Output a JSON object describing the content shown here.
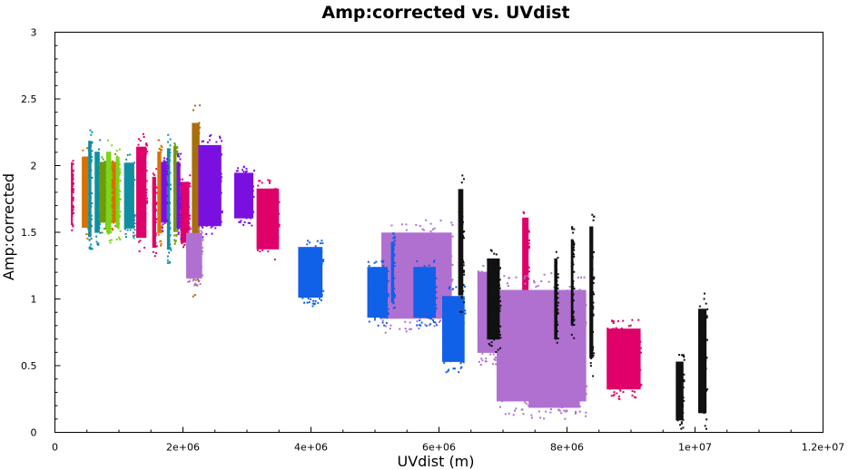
{
  "chart_data": {
    "type": "scatter",
    "title": "Amp:corrected vs. UVdist",
    "xlabel": "UVdist (m)",
    "ylabel": "Amp:corrected",
    "xlim": [
      0,
      12000000
    ],
    "ylim": [
      0,
      3
    ],
    "x_ticks": [
      {
        "value": 0,
        "label": "0"
      },
      {
        "value": 2000000,
        "label": "2e+06"
      },
      {
        "value": 4000000,
        "label": "4e+06"
      },
      {
        "value": 6000000,
        "label": "6e+06"
      },
      {
        "value": 8000000,
        "label": "8e+06"
      },
      {
        "value": 10000000,
        "label": "1e+07"
      },
      {
        "value": 12000000,
        "label": "1.2e+07"
      }
    ],
    "y_ticks": [
      {
        "value": 0,
        "label": "0"
      },
      {
        "value": 0.5,
        "label": "0.5"
      },
      {
        "value": 1,
        "label": "1"
      },
      {
        "value": 1.5,
        "label": "1.5"
      },
      {
        "value": 2,
        "label": "2"
      },
      {
        "value": 2.5,
        "label": "2.5"
      },
      {
        "value": 3,
        "label": "3"
      }
    ],
    "grid": false,
    "legend": "none",
    "series": [
      {
        "color": "#e0006a",
        "clusters": [
          {
            "x0": 250000,
            "x1": 270000,
            "ylo": 1.48,
            "yhi": 2.1
          },
          {
            "x0": 1270000,
            "x1": 1430000,
            "ylo": 1.35,
            "yhi": 2.25
          },
          {
            "x0": 1520000,
            "x1": 1580000,
            "ylo": 1.3,
            "yhi": 2.0
          },
          {
            "x0": 1960000,
            "x1": 2100000,
            "ylo": 1.35,
            "yhi": 1.95
          },
          {
            "x0": 3150000,
            "x1": 3500000,
            "ylo": 1.3,
            "yhi": 1.9
          },
          {
            "x0": 7300000,
            "x1": 7400000,
            "ylo": 0.95,
            "yhi": 1.7
          },
          {
            "x0": 7050000,
            "x1": 7100000,
            "ylo": 0.5,
            "yhi": 0.95
          },
          {
            "x0": 8620000,
            "x1": 9150000,
            "ylo": 0.25,
            "yhi": 0.85
          }
        ]
      },
      {
        "color": "#d97000",
        "clusters": [
          {
            "x0": 420000,
            "x1": 520000,
            "ylo": 1.45,
            "yhi": 2.15
          },
          {
            "x0": 880000,
            "x1": 960000,
            "ylo": 1.5,
            "yhi": 2.1
          },
          {
            "x0": 1600000,
            "x1": 1660000,
            "ylo": 1.4,
            "yhi": 2.2
          }
        ]
      },
      {
        "color": "#0f8fa0",
        "clusters": [
          {
            "x0": 520000,
            "x1": 570000,
            "ylo": 1.35,
            "yhi": 2.3
          },
          {
            "x0": 620000,
            "x1": 700000,
            "ylo": 1.4,
            "yhi": 2.2
          },
          {
            "x0": 1080000,
            "x1": 1240000,
            "ylo": 1.45,
            "yhi": 2.1
          },
          {
            "x0": 1750000,
            "x1": 1800000,
            "ylo": 1.25,
            "yhi": 2.25
          }
        ]
      },
      {
        "color": "#6e9a0c",
        "clusters": [
          {
            "x0": 700000,
            "x1": 800000,
            "ylo": 1.5,
            "yhi": 2.1
          },
          {
            "x0": 1850000,
            "x1": 1900000,
            "ylo": 1.4,
            "yhi": 2.25
          }
        ]
      },
      {
        "color": "#7ad61a",
        "clusters": [
          {
            "x0": 800000,
            "x1": 880000,
            "ylo": 1.4,
            "yhi": 2.2
          },
          {
            "x0": 950000,
            "x1": 1010000,
            "ylo": 1.45,
            "yhi": 2.15
          }
        ]
      },
      {
        "color": "#a86e0c",
        "clusters": [
          {
            "x0": 2140000,
            "x1": 2260000,
            "ylo": 1.0,
            "yhi": 2.5
          }
        ]
      },
      {
        "color": "#7a10e0",
        "clusters": [
          {
            "x0": 1660000,
            "x1": 1750000,
            "ylo": 1.5,
            "yhi": 2.1
          },
          {
            "x0": 1900000,
            "x1": 1960000,
            "ylo": 1.45,
            "yhi": 2.1
          },
          {
            "x0": 2240000,
            "x1": 2600000,
            "ylo": 1.45,
            "yhi": 2.25
          },
          {
            "x0": 2800000,
            "x1": 3100000,
            "ylo": 1.55,
            "yhi": 2.0
          }
        ]
      },
      {
        "color": "#b070d0",
        "clusters": [
          {
            "x0": 2050000,
            "x1": 2300000,
            "ylo": 1.1,
            "yhi": 1.55
          },
          {
            "x0": 5100000,
            "x1": 6200000,
            "ylo": 0.75,
            "yhi": 1.6
          },
          {
            "x0": 6600000,
            "x1": 6900000,
            "ylo": 0.5,
            "yhi": 1.3
          },
          {
            "x0": 6900000,
            "x1": 8300000,
            "ylo": 0.1,
            "yhi": 1.2
          },
          {
            "x0": 7400000,
            "x1": 8200000,
            "ylo": 0.1,
            "yhi": 0.8
          }
        ]
      },
      {
        "color": "#1060e8",
        "clusters": [
          {
            "x0": 3800000,
            "x1": 4180000,
            "ylo": 0.95,
            "yhi": 1.45
          },
          {
            "x0": 4880000,
            "x1": 5200000,
            "ylo": 0.8,
            "yhi": 1.3
          },
          {
            "x0": 5250000,
            "x1": 5300000,
            "ylo": 0.9,
            "yhi": 1.5
          },
          {
            "x0": 5600000,
            "x1": 5950000,
            "ylo": 0.8,
            "yhi": 1.3
          },
          {
            "x0": 6050000,
            "x1": 6400000,
            "ylo": 0.45,
            "yhi": 1.1
          }
        ]
      },
      {
        "color": "#111111",
        "clusters": [
          {
            "x0": 6300000,
            "x1": 6380000,
            "ylo": 0.9,
            "yhi": 1.95
          },
          {
            "x0": 6750000,
            "x1": 6950000,
            "ylo": 0.6,
            "yhi": 1.4
          },
          {
            "x0": 7800000,
            "x1": 7850000,
            "ylo": 0.6,
            "yhi": 1.4
          },
          {
            "x0": 8060000,
            "x1": 8100000,
            "ylo": 0.7,
            "yhi": 1.55
          },
          {
            "x0": 8350000,
            "x1": 8410000,
            "ylo": 0.4,
            "yhi": 1.7
          },
          {
            "x0": 9700000,
            "x1": 9820000,
            "ylo": 0.02,
            "yhi": 0.6
          },
          {
            "x0": 10050000,
            "x1": 10180000,
            "ylo": 0.02,
            "yhi": 1.05
          }
        ]
      }
    ]
  }
}
